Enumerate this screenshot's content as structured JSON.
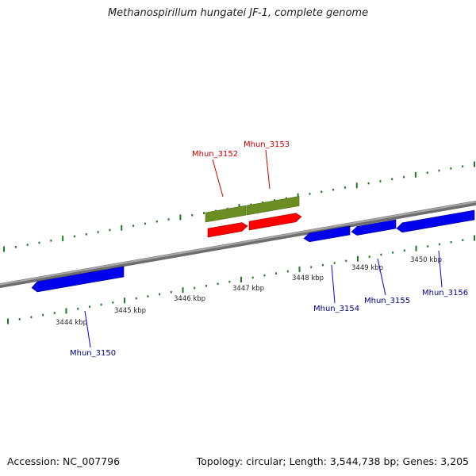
{
  "title": "Methanospirillum hungatei JF-1, complete genome",
  "accession_text": "Accession: NC_007796",
  "summary_text": "Topology: circular; Length: 3,544,738 bp; Genes: 3,205",
  "colors": {
    "backbone": "#8c8c8c",
    "tick": "#1f7a1f",
    "forward_gene": "#ff0000",
    "forward_cds_bar": "#6b8e23",
    "reverse_gene": "#0000ee",
    "forward_label": "#cc0000",
    "reverse_label": "#00008b",
    "scale_label": "#222222"
  },
  "scale_labels": [
    "3444 kbp",
    "3445 kbp",
    "3446 kbp",
    "3447 kbp",
    "3448 kbp",
    "3449 kbp",
    "3450 kbp"
  ],
  "forward_genes": [
    {
      "label": "Mhun_3152"
    },
    {
      "label": "Mhun_3153"
    }
  ],
  "reverse_genes": [
    {
      "label": "Mhun_3150"
    },
    {
      "label": "Mhun_3154"
    },
    {
      "label": "Mhun_3155"
    },
    {
      "label": "Mhun_3156"
    }
  ]
}
